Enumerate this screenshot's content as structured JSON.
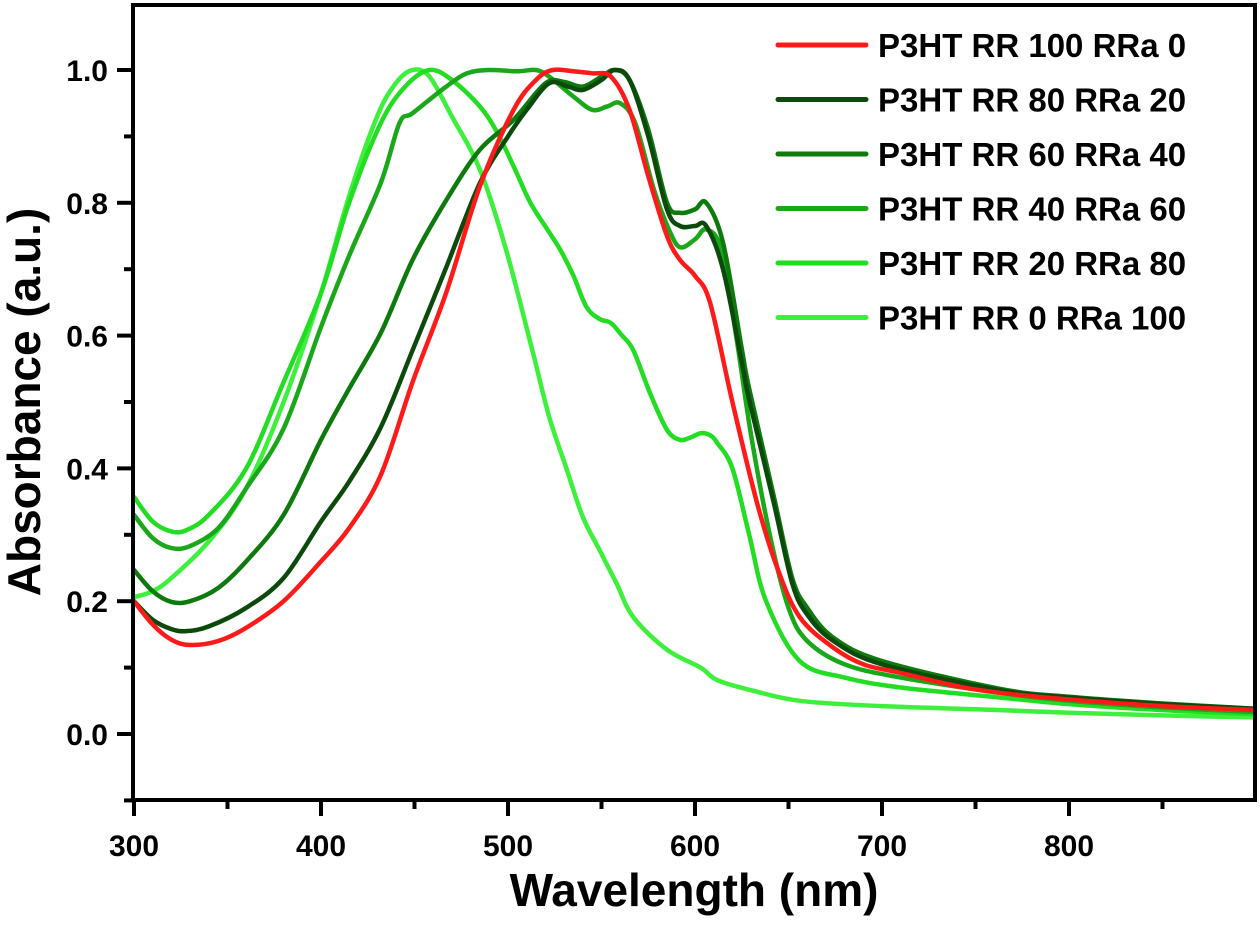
{
  "chart_data": {
    "type": "line",
    "title": "",
    "xlabel": "Wavelength (nm)",
    "ylabel": "Absorbance (a.u.)",
    "xlim": [
      300,
      900
    ],
    "ylim": [
      -0.1,
      1.1
    ],
    "grid": false,
    "legend_position": "top-right",
    "x_ticks": [
      300,
      400,
      500,
      600,
      700,
      800
    ],
    "x_tick_labels": [
      "300",
      "400",
      "500",
      "600",
      "700",
      "800"
    ],
    "x_minor_ticks": [
      350,
      450,
      550,
      650,
      750,
      850
    ],
    "y_ticks": [
      0.0,
      0.2,
      0.4,
      0.6,
      0.8,
      1.0
    ],
    "y_tick_labels": [
      "0.0",
      "0.2",
      "0.4",
      "0.6",
      "0.8",
      "1.0"
    ],
    "y_minor_ticks": [
      -0.1,
      0.1,
      0.3,
      0.5,
      0.7,
      0.9
    ],
    "series": [
      {
        "name": "P3HT RR 100 RRa 0",
        "color": "#ff1a1a",
        "points": [
          [
            300,
            0.2
          ],
          [
            310,
            0.165
          ],
          [
            320,
            0.142
          ],
          [
            330,
            0.134
          ],
          [
            345,
            0.14
          ],
          [
            360,
            0.16
          ],
          [
            380,
            0.2
          ],
          [
            400,
            0.26
          ],
          [
            415,
            0.31
          ],
          [
            432,
            0.39
          ],
          [
            449,
            0.53
          ],
          [
            467,
            0.665
          ],
          [
            485,
            0.825
          ],
          [
            503,
            0.94
          ],
          [
            515,
            0.985
          ],
          [
            524,
            1.0
          ],
          [
            535,
            0.998
          ],
          [
            545,
            0.995
          ],
          [
            555,
            0.99
          ],
          [
            565,
            0.94
          ],
          [
            575,
            0.84
          ],
          [
            585,
            0.75
          ],
          [
            592,
            0.714
          ],
          [
            600,
            0.69
          ],
          [
            608,
            0.65
          ],
          [
            620,
            0.5
          ],
          [
            633,
            0.35
          ],
          [
            644,
            0.25
          ],
          [
            656,
            0.176
          ],
          [
            674,
            0.13
          ],
          [
            690,
            0.105
          ],
          [
            710,
            0.092
          ],
          [
            740,
            0.072
          ],
          [
            763,
            0.062
          ],
          [
            800,
            0.052
          ],
          [
            850,
            0.042
          ],
          [
            900,
            0.036
          ]
        ]
      },
      {
        "name": "P3HT RR 80 RRa 20",
        "color": "#0b4a0b",
        "points": [
          [
            300,
            0.2
          ],
          [
            310,
            0.172
          ],
          [
            320,
            0.158
          ],
          [
            328,
            0.155
          ],
          [
            340,
            0.162
          ],
          [
            360,
            0.19
          ],
          [
            380,
            0.235
          ],
          [
            400,
            0.32
          ],
          [
            415,
            0.38
          ],
          [
            432,
            0.462
          ],
          [
            449,
            0.578
          ],
          [
            467,
            0.703
          ],
          [
            485,
            0.83
          ],
          [
            500,
            0.9
          ],
          [
            510,
            0.94
          ],
          [
            522,
            0.98
          ],
          [
            532,
            0.975
          ],
          [
            540,
            0.97
          ],
          [
            550,
            0.985
          ],
          [
            557,
            1.0
          ],
          [
            565,
            0.985
          ],
          [
            575,
            0.9
          ],
          [
            585,
            0.79
          ],
          [
            592,
            0.765
          ],
          [
            600,
            0.765
          ],
          [
            606,
            0.765
          ],
          [
            615,
            0.7
          ],
          [
            625,
            0.56
          ],
          [
            629,
            0.503
          ],
          [
            642,
            0.35
          ],
          [
            652,
            0.227
          ],
          [
            660,
            0.18
          ],
          [
            674,
            0.14
          ],
          [
            700,
            0.105
          ],
          [
            763,
            0.066
          ],
          [
            800,
            0.055
          ],
          [
            850,
            0.045
          ],
          [
            900,
            0.038
          ]
        ]
      },
      {
        "name": "P3HT RR 60 RRa 40",
        "color": "#0e7a0e",
        "points": [
          [
            300,
            0.247
          ],
          [
            310,
            0.215
          ],
          [
            320,
            0.199
          ],
          [
            330,
            0.2
          ],
          [
            345,
            0.22
          ],
          [
            360,
            0.26
          ],
          [
            380,
            0.33
          ],
          [
            400,
            0.443
          ],
          [
            415,
            0.52
          ],
          [
            432,
            0.604
          ],
          [
            449,
            0.714
          ],
          [
            467,
            0.804
          ],
          [
            485,
            0.88
          ],
          [
            503,
            0.925
          ],
          [
            520,
            0.98
          ],
          [
            530,
            0.982
          ],
          [
            540,
            0.975
          ],
          [
            550,
            0.99
          ],
          [
            557,
            1.0
          ],
          [
            565,
            0.985
          ],
          [
            575,
            0.91
          ],
          [
            585,
            0.8
          ],
          [
            592,
            0.785
          ],
          [
            600,
            0.79
          ],
          [
            606,
            0.8
          ],
          [
            615,
            0.74
          ],
          [
            625,
            0.58
          ],
          [
            629,
            0.52
          ],
          [
            642,
            0.36
          ],
          [
            652,
            0.235
          ],
          [
            660,
            0.19
          ],
          [
            674,
            0.145
          ],
          [
            700,
            0.11
          ],
          [
            763,
            0.068
          ],
          [
            800,
            0.056
          ],
          [
            850,
            0.046
          ],
          [
            900,
            0.038
          ]
        ]
      },
      {
        "name": "P3HT RR 40 RRa 60",
        "color": "#1aa81a",
        "points": [
          [
            300,
            0.33
          ],
          [
            310,
            0.295
          ],
          [
            320,
            0.28
          ],
          [
            330,
            0.283
          ],
          [
            345,
            0.31
          ],
          [
            360,
            0.37
          ],
          [
            380,
            0.46
          ],
          [
            400,
            0.613
          ],
          [
            415,
            0.72
          ],
          [
            432,
            0.83
          ],
          [
            442,
            0.92
          ],
          [
            449,
            0.935
          ],
          [
            467,
            0.975
          ],
          [
            478,
            0.995
          ],
          [
            490,
            1.0
          ],
          [
            505,
            0.998
          ],
          [
            515,
            1.0
          ],
          [
            522,
            0.99
          ],
          [
            535,
            0.96
          ],
          [
            545,
            0.94
          ],
          [
            553,
            0.945
          ],
          [
            560,
            0.95
          ],
          [
            568,
            0.92
          ],
          [
            578,
            0.82
          ],
          [
            586,
            0.76
          ],
          [
            592,
            0.733
          ],
          [
            600,
            0.745
          ],
          [
            606,
            0.76
          ],
          [
            614,
            0.73
          ],
          [
            622,
            0.6
          ],
          [
            630,
            0.45
          ],
          [
            640,
            0.3
          ],
          [
            650,
            0.19
          ],
          [
            660,
            0.14
          ],
          [
            680,
            0.105
          ],
          [
            710,
            0.085
          ],
          [
            763,
            0.062
          ],
          [
            800,
            0.05
          ],
          [
            850,
            0.04
          ],
          [
            900,
            0.033
          ]
        ]
      },
      {
        "name": "P3HT RR 20 RRa 80",
        "color": "#22dd22",
        "points": [
          [
            300,
            0.357
          ],
          [
            310,
            0.32
          ],
          [
            320,
            0.305
          ],
          [
            328,
            0.307
          ],
          [
            340,
            0.33
          ],
          [
            360,
            0.4
          ],
          [
            380,
            0.53
          ],
          [
            400,
            0.664
          ],
          [
            415,
            0.8
          ],
          [
            432,
            0.92
          ],
          [
            445,
            0.975
          ],
          [
            458,
            1.0
          ],
          [
            470,
            0.985
          ],
          [
            485,
            0.945
          ],
          [
            494,
            0.907
          ],
          [
            503,
            0.855
          ],
          [
            512,
            0.8
          ],
          [
            521,
            0.76
          ],
          [
            528,
            0.729
          ],
          [
            535,
            0.69
          ],
          [
            542,
            0.643
          ],
          [
            549,
            0.625
          ],
          [
            555,
            0.619
          ],
          [
            561,
            0.6
          ],
          [
            567,
            0.578
          ],
          [
            576,
            0.513
          ],
          [
            585,
            0.458
          ],
          [
            592,
            0.443
          ],
          [
            598,
            0.447
          ],
          [
            603,
            0.453
          ],
          [
            608,
            0.45
          ],
          [
            612,
            0.438
          ],
          [
            620,
            0.4
          ],
          [
            629,
            0.3
          ],
          [
            638,
            0.2
          ],
          [
            656,
            0.11
          ],
          [
            680,
            0.085
          ],
          [
            710,
            0.07
          ],
          [
            763,
            0.055
          ],
          [
            800,
            0.045
          ],
          [
            850,
            0.036
          ],
          [
            900,
            0.03
          ]
        ]
      },
      {
        "name": "P3HT RR 0 RRa 100",
        "color": "#3cf03c",
        "points": [
          [
            300,
            0.206
          ],
          [
            310,
            0.215
          ],
          [
            320,
            0.235
          ],
          [
            340,
            0.29
          ],
          [
            360,
            0.37
          ],
          [
            380,
            0.5
          ],
          [
            400,
            0.664
          ],
          [
            415,
            0.81
          ],
          [
            430,
            0.93
          ],
          [
            440,
            0.98
          ],
          [
            449,
            1.0
          ],
          [
            458,
            0.99
          ],
          [
            470,
            0.93
          ],
          [
            485,
            0.85
          ],
          [
            499,
            0.729
          ],
          [
            513,
            0.578
          ],
          [
            522,
            0.478
          ],
          [
            531,
            0.402
          ],
          [
            540,
            0.327
          ],
          [
            549,
            0.277
          ],
          [
            558,
            0.227
          ],
          [
            567,
            0.176
          ],
          [
            585,
            0.127
          ],
          [
            603,
            0.1
          ],
          [
            612,
            0.081
          ],
          [
            630,
            0.066
          ],
          [
            656,
            0.05
          ],
          [
            700,
            0.042
          ],
          [
            763,
            0.036
          ],
          [
            800,
            0.032
          ],
          [
            850,
            0.028
          ],
          [
            900,
            0.025
          ]
        ]
      }
    ]
  }
}
